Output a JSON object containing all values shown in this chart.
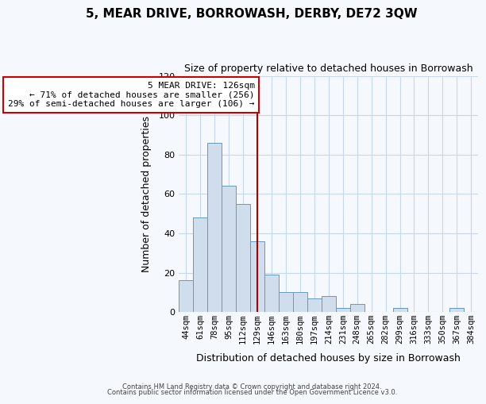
{
  "title": "5, MEAR DRIVE, BORROWASH, DERBY, DE72 3QW",
  "subtitle": "Size of property relative to detached houses in Borrowash",
  "xlabel": "Distribution of detached houses by size in Borrowash",
  "ylabel": "Number of detached properties",
  "bar_color": "#cfdded",
  "bar_edge_color": "#6699bb",
  "categories": [
    "44sqm",
    "61sqm",
    "78sqm",
    "95sqm",
    "112sqm",
    "129sqm",
    "146sqm",
    "163sqm",
    "180sqm",
    "197sqm",
    "214sqm",
    "231sqm",
    "248sqm",
    "265sqm",
    "282sqm",
    "299sqm",
    "316sqm",
    "333sqm",
    "350sqm",
    "367sqm",
    "384sqm"
  ],
  "values": [
    16,
    48,
    86,
    64,
    55,
    36,
    19,
    10,
    10,
    7,
    8,
    2,
    4,
    0,
    0,
    2,
    0,
    0,
    0,
    2,
    0
  ],
  "vline_x_index": 5,
  "vline_color": "#aa0000",
  "annotation_line1": "5 MEAR DRIVE: 126sqm",
  "annotation_line2": "← 71% of detached houses are smaller (256)",
  "annotation_line3": "29% of semi-detached houses are larger (106) →",
  "annotation_box_color": "#ffffff",
  "annotation_box_edge": "#cc0000",
  "ylim": [
    0,
    120
  ],
  "yticks": [
    0,
    20,
    40,
    60,
    80,
    100,
    120
  ],
  "footer1": "Contains HM Land Registry data © Crown copyright and database right 2024.",
  "footer2": "Contains public sector information licensed under the Open Government Licence v3.0.",
  "background_color": "#f5f8fc",
  "grid_color": "#c8d8e8"
}
